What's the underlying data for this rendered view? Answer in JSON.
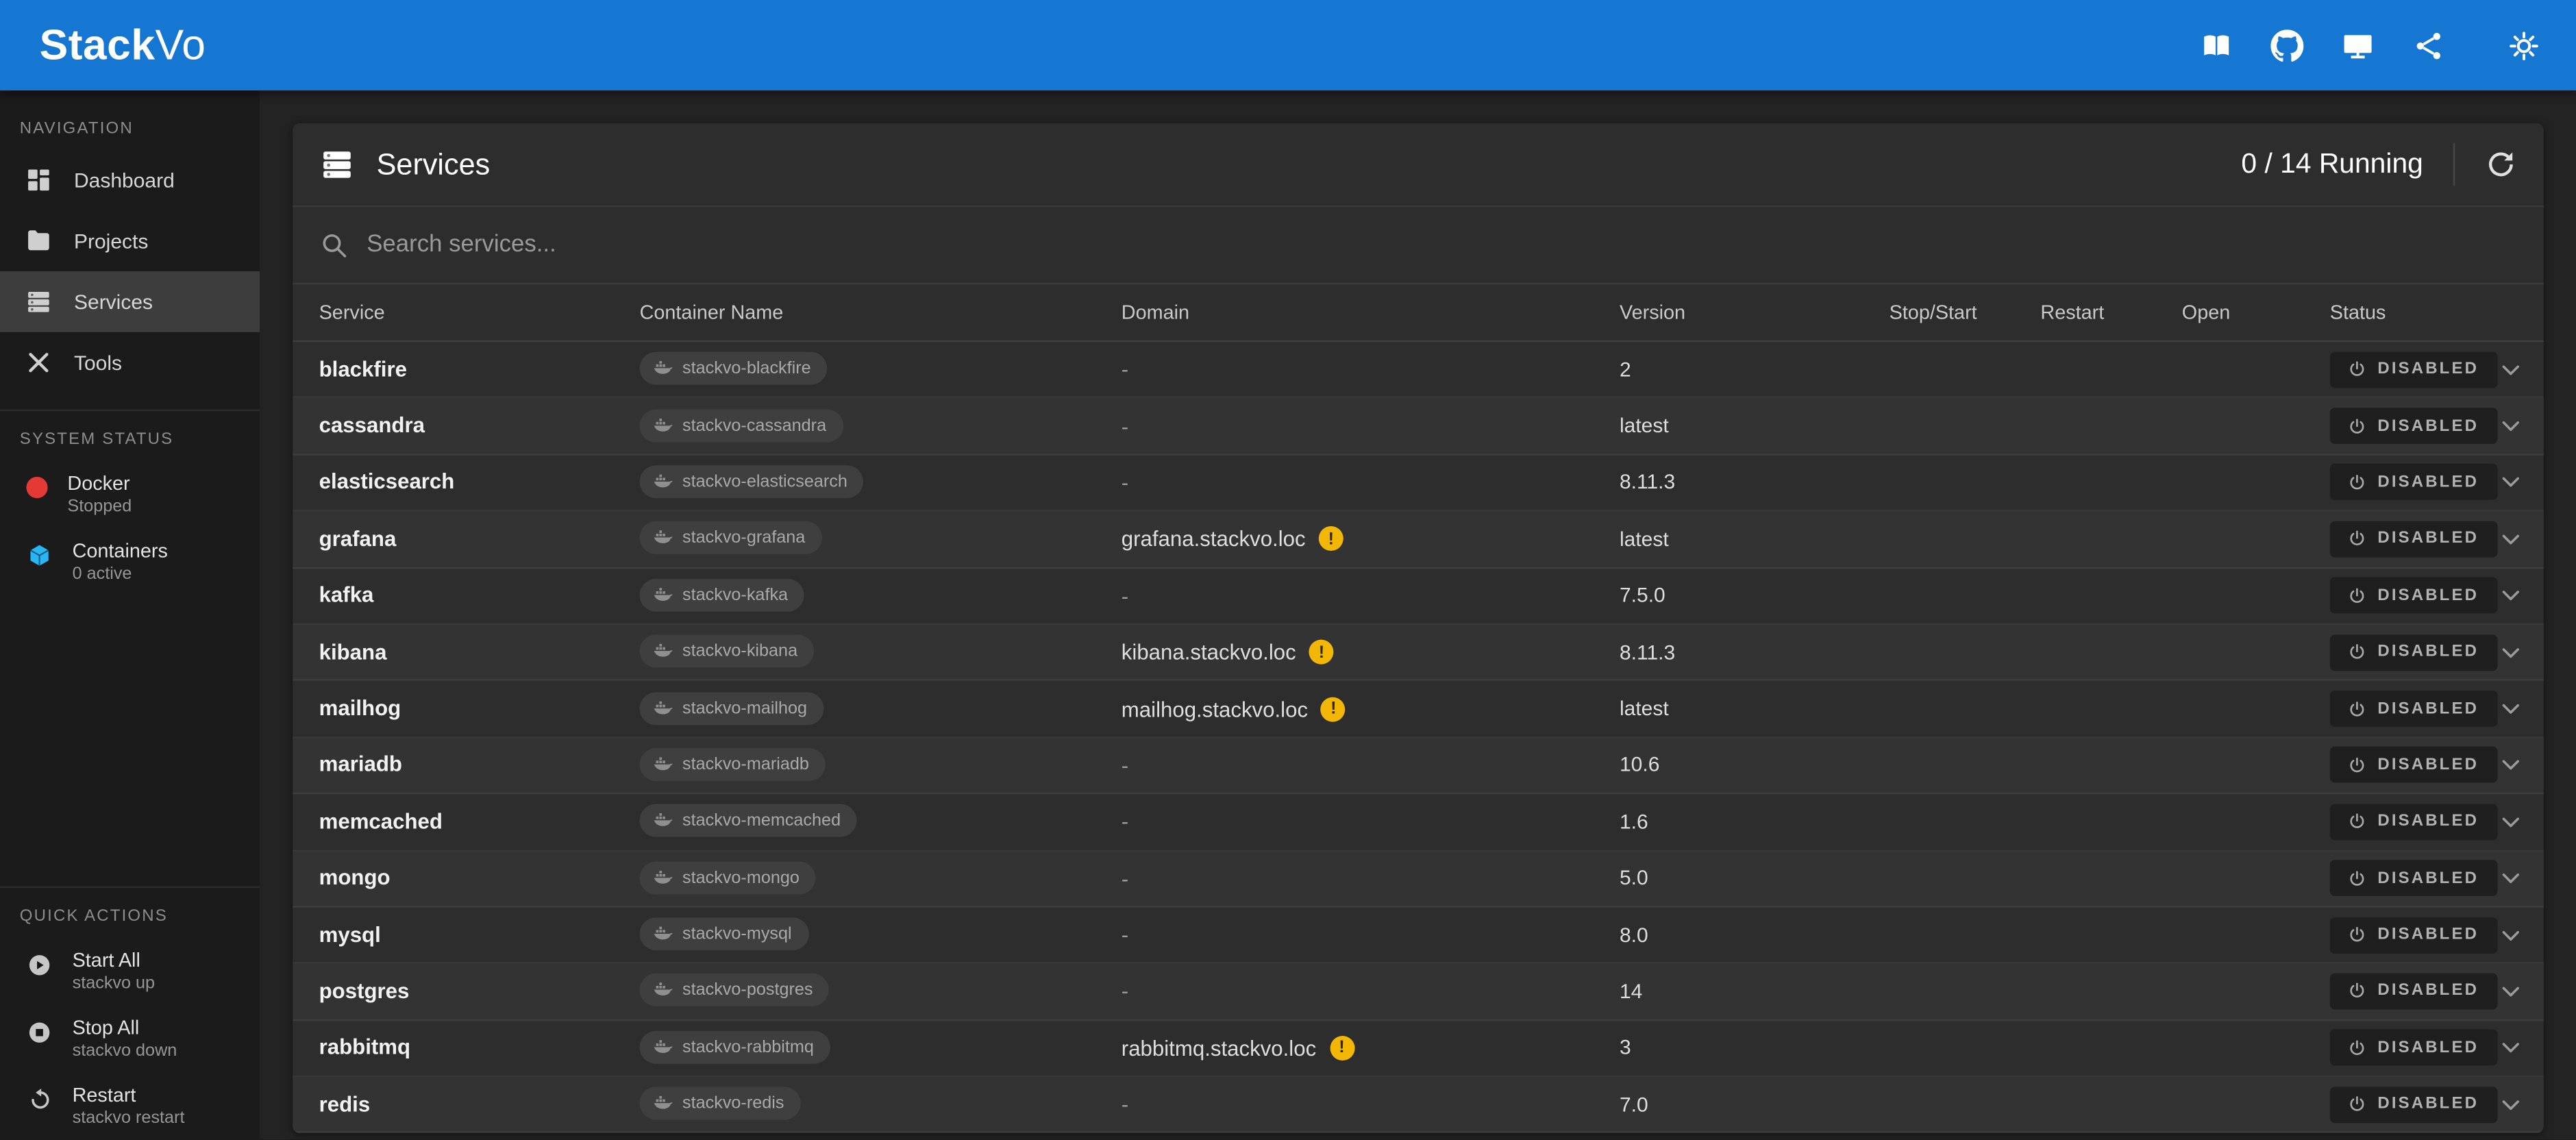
{
  "topbar": {
    "logo_primary": "Stack",
    "logo_secondary": "Vo",
    "background": "#1577d2",
    "icons": [
      "docs-icon",
      "github-icon",
      "monitor-icon",
      "share-icon",
      "settings-icon"
    ]
  },
  "sidebar": {
    "nav_label": "NAVIGATION",
    "nav_items": [
      {
        "label": "Dashboard",
        "icon": "dashboard-icon",
        "active": false
      },
      {
        "label": "Projects",
        "icon": "projects-icon",
        "active": false
      },
      {
        "label": "Services",
        "icon": "services-icon",
        "active": true
      },
      {
        "label": "Tools",
        "icon": "tools-icon",
        "active": false
      }
    ],
    "system_status_label": "SYSTEM STATUS",
    "status_items": [
      {
        "title": "Docker",
        "subtitle": "Stopped",
        "icon": "docker-status-icon",
        "color": "#e53935"
      },
      {
        "title": "Containers",
        "subtitle": "0 active",
        "icon": "containers-icon",
        "color": "#29b6f6"
      }
    ],
    "quick_actions_label": "QUICK ACTIONS",
    "quick_actions": [
      {
        "title": "Start All",
        "subtitle": "stackvo up",
        "icon": "play-circle-icon"
      },
      {
        "title": "Stop All",
        "subtitle": "stackvo down",
        "icon": "stop-circle-icon"
      },
      {
        "title": "Restart",
        "subtitle": "stackvo restart",
        "icon": "restart-icon"
      }
    ]
  },
  "services_panel": {
    "title": "Services",
    "running_summary": "0 / 14 Running",
    "search_placeholder": "Search services...",
    "columns": [
      "Service",
      "Container Name",
      "Domain",
      "Version",
      "Stop/Start",
      "Restart",
      "Open",
      "Status"
    ],
    "status_label": "DISABLED",
    "warning_glyph": "!",
    "warning_color": "#f2b705",
    "rows": [
      {
        "service": "blackfire",
        "container": "stackvo-blackfire",
        "domain": "-",
        "warning": false,
        "version": "2",
        "status": "DISABLED"
      },
      {
        "service": "cassandra",
        "container": "stackvo-cassandra",
        "domain": "-",
        "warning": false,
        "version": "latest",
        "status": "DISABLED"
      },
      {
        "service": "elasticsearch",
        "container": "stackvo-elasticsearch",
        "domain": "-",
        "warning": false,
        "version": "8.11.3",
        "status": "DISABLED"
      },
      {
        "service": "grafana",
        "container": "stackvo-grafana",
        "domain": "grafana.stackvo.loc",
        "warning": true,
        "version": "latest",
        "status": "DISABLED"
      },
      {
        "service": "kafka",
        "container": "stackvo-kafka",
        "domain": "-",
        "warning": false,
        "version": "7.5.0",
        "status": "DISABLED"
      },
      {
        "service": "kibana",
        "container": "stackvo-kibana",
        "domain": "kibana.stackvo.loc",
        "warning": true,
        "version": "8.11.3",
        "status": "DISABLED"
      },
      {
        "service": "mailhog",
        "container": "stackvo-mailhog",
        "domain": "mailhog.stackvo.loc",
        "warning": true,
        "version": "latest",
        "status": "DISABLED"
      },
      {
        "service": "mariadb",
        "container": "stackvo-mariadb",
        "domain": "-",
        "warning": false,
        "version": "10.6",
        "status": "DISABLED"
      },
      {
        "service": "memcached",
        "container": "stackvo-memcached",
        "domain": "-",
        "warning": false,
        "version": "1.6",
        "status": "DISABLED"
      },
      {
        "service": "mongo",
        "container": "stackvo-mongo",
        "domain": "-",
        "warning": false,
        "version": "5.0",
        "status": "DISABLED"
      },
      {
        "service": "mysql",
        "container": "stackvo-mysql",
        "domain": "-",
        "warning": false,
        "version": "8.0",
        "status": "DISABLED"
      },
      {
        "service": "postgres",
        "container": "stackvo-postgres",
        "domain": "-",
        "warning": false,
        "version": "14",
        "status": "DISABLED"
      },
      {
        "service": "rabbitmq",
        "container": "stackvo-rabbitmq",
        "domain": "rabbitmq.stackvo.loc",
        "warning": true,
        "version": "3",
        "status": "DISABLED"
      },
      {
        "service": "redis",
        "container": "stackvo-redis",
        "domain": "-",
        "warning": false,
        "version": "7.0",
        "status": "DISABLED"
      }
    ]
  }
}
